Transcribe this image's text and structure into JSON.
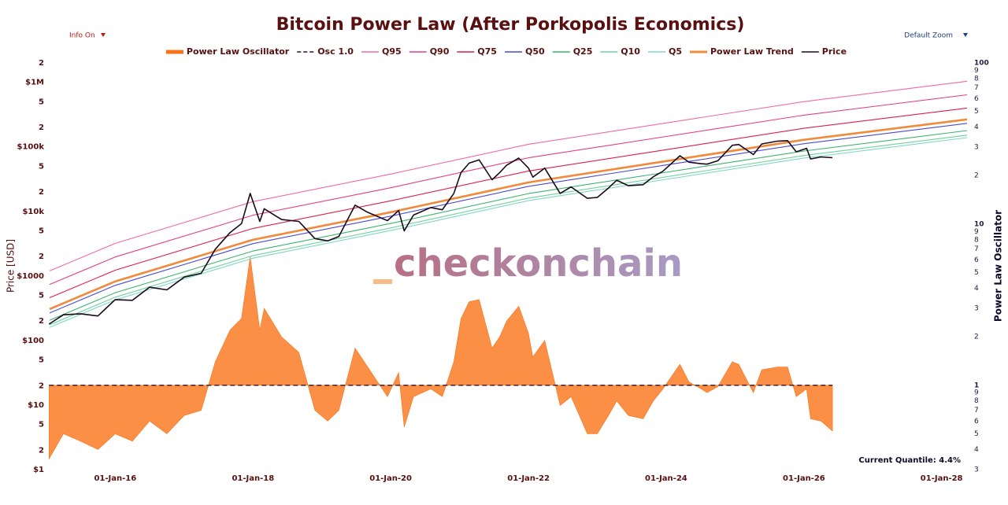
{
  "chart_data": {
    "type": "line",
    "title": "Bitcoin Power Law (After Porkopolis Economics)",
    "controls": [
      "Info On",
      "Default Zoom"
    ],
    "annotation": "Current Quantile: 4.4%",
    "watermark": "checkonchain",
    "ylabel": "Price [USD]",
    "y2label": "Power Law Oscillator",
    "log_y": true,
    "log_y2": true,
    "grid": false,
    "legend": "top",
    "xlim": [
      "2015-01-18",
      "2028-05-15"
    ],
    "xticks": [
      {
        "value": "2016-01-01",
        "label": "01-Jan-16"
      },
      {
        "value": "2018-01-01",
        "label": "01-Jan-18"
      },
      {
        "value": "2020-01-01",
        "label": "01-Jan-20"
      },
      {
        "value": "2022-01-01",
        "label": "01-Jan-22"
      },
      {
        "value": "2024-01-01",
        "label": "01-Jan-24"
      },
      {
        "value": "2026-01-01",
        "label": "01-Jan-26"
      },
      {
        "value": "2028-01-01",
        "label": "01-Jan-28"
      }
    ],
    "ylim": [
      1,
      2000000
    ],
    "yticks": [
      {
        "value": 1,
        "label": "$1"
      },
      2,
      5,
      {
        "value": 10,
        "label": "$10"
      },
      {
        "value": 20,
        "label": "2"
      },
      {
        "value": 50,
        "label": "5"
      },
      {
        "value": 100,
        "label": "$100"
      },
      {
        "value": 200,
        "label": "2"
      },
      {
        "value": 500,
        "label": "5"
      },
      {
        "value": 1000,
        "label": "$1000"
      },
      {
        "value": 2000,
        "label": "2"
      },
      {
        "value": 5000,
        "label": "5"
      },
      {
        "value": 10000,
        "label": "$10k"
      },
      {
        "value": 20000,
        "label": "2"
      },
      {
        "value": 50000,
        "label": "5"
      },
      {
        "value": 100000,
        "label": "$100k"
      },
      {
        "value": 200000,
        "label": "2"
      },
      {
        "value": 500000,
        "label": "5"
      },
      {
        "value": 1000000,
        "label": "$1M"
      },
      {
        "value": 2000000,
        "label": "2"
      }
    ],
    "y2lim": [
      0.3,
      100
    ],
    "y2ticks": [
      {
        "value": 0.3,
        "label": "3"
      },
      {
        "value": 0.4,
        "label": "4"
      },
      {
        "value": 0.5,
        "label": "5"
      },
      {
        "value": 0.6,
        "label": "6"
      },
      {
        "value": 0.7,
        "label": "7"
      },
      {
        "value": 0.8,
        "label": "8"
      },
      {
        "value": 0.9,
        "label": "9"
      },
      1,
      2,
      3,
      4,
      5,
      6,
      7,
      8,
      9,
      10,
      {
        "value": 20,
        "label": "2"
      },
      {
        "value": 30,
        "label": "3"
      },
      {
        "value": 40,
        "label": "4"
      },
      {
        "value": 50,
        "label": "5"
      },
      {
        "value": 60,
        "label": "6"
      },
      {
        "value": 70,
        "label": "7"
      },
      {
        "value": 80,
        "label": "8"
      },
      {
        "value": 90,
        "label": "9"
      },
      100
    ],
    "series": [
      {
        "name": "Power Law Oscillator",
        "color": "#f97316",
        "axis": "y2",
        "kind": "area",
        "x": [
          "2015-01-15",
          "2015-04-01",
          "2015-07-01",
          "2015-10-01",
          "2016-01-01",
          "2016-04-01",
          "2016-07-01",
          "2016-10-01",
          "2017-01-01",
          "2017-04-01",
          "2017-06-15",
          "2017-09-01",
          "2017-11-01",
          "2017-12-17",
          "2018-02-06",
          "2018-03-01",
          "2018-06-01",
          "2018-09-01",
          "2018-11-25",
          "2019-02-01",
          "2019-04-01",
          "2019-06-26",
          "2019-09-01",
          "2019-12-15",
          "2020-02-12",
          "2020-03-13",
          "2020-05-01",
          "2020-08-01",
          "2020-10-01",
          "2020-12-01",
          "2021-01-08",
          "2021-02-20",
          "2021-04-14",
          "2021-06-22",
          "2021-08-01",
          "2021-09-07",
          "2021-11-10",
          "2022-01-01",
          "2022-01-24",
          "2022-03-28",
          "2022-06-18",
          "2022-08-15",
          "2022-11-09",
          "2023-01-01",
          "2023-03-01",
          "2023-04-14",
          "2023-06-15",
          "2023-09-01",
          "2023-10-25",
          "2023-12-15",
          "2024-03-14",
          "2024-05-01",
          "2024-07-05",
          "2024-08-05",
          "2024-10-01",
          "2024-12-17",
          "2025-01-20",
          "2025-04-08",
          "2025-05-22",
          "2025-08-14",
          "2025-10-06",
          "2025-11-21",
          "2026-01-15",
          "2026-02-05",
          "2026-04-01",
          "2026-06-01"
        ],
        "values": [
          0.35,
          0.5,
          0.45,
          0.4,
          0.5,
          0.45,
          0.6,
          0.5,
          0.65,
          0.7,
          1.4,
          2.2,
          2.6,
          6.3,
          2.2,
          3.0,
          2.0,
          1.6,
          0.7,
          0.6,
          0.7,
          1.7,
          1.3,
          0.85,
          1.2,
          0.55,
          0.85,
          0.95,
          0.85,
          1.4,
          2.6,
          3.3,
          3.4,
          1.7,
          2.0,
          2.5,
          3.1,
          2.1,
          1.5,
          1.9,
          0.75,
          0.85,
          0.5,
          0.5,
          0.65,
          0.8,
          0.65,
          0.62,
          0.8,
          0.95,
          1.35,
          1.05,
          0.95,
          0.9,
          0.98,
          1.4,
          1.35,
          0.9,
          1.25,
          1.3,
          1.3,
          0.85,
          0.95,
          0.62,
          0.6,
          0.52
        ]
      },
      {
        "name": "Osc 1.0",
        "color": "#2a1030",
        "axis": "y2",
        "dash": true,
        "x": [
          "2015-01-15",
          "2026-06-01"
        ],
        "values": [
          1,
          1
        ]
      },
      {
        "name": "Q95",
        "color": "#f06aa8",
        "x": [
          "2015-01-18",
          "2016-01-01",
          "2018-01-01",
          "2020-01-01",
          "2022-01-01",
          "2024-01-01",
          "2026-01-01",
          "2028-05-15"
        ],
        "values": [
          1200,
          3200,
          14200,
          37900,
          110000,
          235000,
          503000,
          1040000
        ]
      },
      {
        "name": "Q90",
        "color": "#e23f86",
        "x": [
          "2015-01-18",
          "2016-01-01",
          "2018-01-01",
          "2020-01-01",
          "2022-01-01",
          "2024-01-01",
          "2026-01-01",
          "2028-05-15"
        ],
        "values": [
          740,
          1970,
          8740,
          23300,
          67700,
          145000,
          310000,
          641000
        ]
      },
      {
        "name": "Q75",
        "color": "#dc1f4a",
        "x": [
          "2015-01-18",
          "2016-01-01",
          "2018-01-01",
          "2020-01-01",
          "2022-01-01",
          "2024-01-01",
          "2026-01-01",
          "2028-05-15"
        ],
        "values": [
          460,
          1230,
          5460,
          14600,
          42300,
          90500,
          194000,
          400000
        ]
      },
      {
        "name": "Q50",
        "color": "#4a4ad0",
        "x": [
          "2015-01-18",
          "2016-01-01",
          "2018-01-01",
          "2020-01-01",
          "2022-01-01",
          "2024-01-01",
          "2026-01-01",
          "2028-05-15"
        ],
        "values": [
          267,
          715,
          3170,
          8460,
          24500,
          52500,
          112000,
          232000
        ]
      },
      {
        "name": "Q25",
        "color": "#3cb371",
        "x": [
          "2015-01-18",
          "2016-01-01",
          "2018-01-01",
          "2020-01-01",
          "2022-01-01",
          "2024-01-01",
          "2026-01-01",
          "2028-05-15"
        ],
        "values": [
          206,
          551,
          2440,
          6510,
          18900,
          40400,
          86400,
          179000
        ]
      },
      {
        "name": "Q10",
        "color": "#6fd39a",
        "x": [
          "2015-01-18",
          "2016-01-01",
          "2018-01-01",
          "2020-01-01",
          "2022-01-01",
          "2024-01-01",
          "2026-01-01",
          "2028-05-15"
        ],
        "values": [
          175,
          469,
          2070,
          5540,
          16100,
          34400,
          73500,
          152000
        ]
      },
      {
        "name": "Q5",
        "color": "#7fd8c8",
        "x": [
          "2015-01-18",
          "2016-01-01",
          "2018-01-01",
          "2020-01-01",
          "2022-01-01",
          "2024-01-01",
          "2026-01-01",
          "2028-05-15"
        ],
        "values": [
          160,
          427,
          1890,
          5050,
          14700,
          31400,
          67100,
          139000
        ]
      },
      {
        "name": "Power Law Trend",
        "color": "#f08a3c",
        "x": [
          "2015-01-18",
          "2016-01-01",
          "2018-01-01",
          "2020-01-01",
          "2022-01-01",
          "2024-01-01",
          "2026-01-01",
          "2028-05-15"
        ],
        "values": [
          307,
          822,
          3640,
          9720,
          28200,
          60300,
          129000,
          267000
        ]
      },
      {
        "name": "Price",
        "color": "#1a0a1a",
        "x": [
          "2015-01-15",
          "2015-04-01",
          "2015-07-01",
          "2015-10-01",
          "2016-01-01",
          "2016-04-01",
          "2016-07-01",
          "2016-10-01",
          "2017-01-01",
          "2017-04-01",
          "2017-06-15",
          "2017-09-01",
          "2017-11-01",
          "2017-12-17",
          "2018-02-06",
          "2018-03-01",
          "2018-06-01",
          "2018-09-01",
          "2018-11-25",
          "2019-02-01",
          "2019-04-01",
          "2019-06-26",
          "2019-09-01",
          "2019-12-15",
          "2020-02-12",
          "2020-03-13",
          "2020-05-01",
          "2020-08-01",
          "2020-10-01",
          "2020-12-01",
          "2021-01-08",
          "2021-02-20",
          "2021-04-14",
          "2021-06-22",
          "2021-08-01",
          "2021-09-07",
          "2021-11-10",
          "2022-01-01",
          "2022-01-24",
          "2022-03-28",
          "2022-06-18",
          "2022-08-15",
          "2022-11-09",
          "2023-01-01",
          "2023-03-01",
          "2023-04-14",
          "2023-06-15",
          "2023-09-01",
          "2023-10-25",
          "2023-12-15",
          "2024-03-14",
          "2024-05-01",
          "2024-07-05",
          "2024-08-05",
          "2024-10-01",
          "2024-12-17",
          "2025-01-20",
          "2025-04-08",
          "2025-05-22",
          "2025-08-14",
          "2025-10-06",
          "2025-11-21",
          "2026-01-15",
          "2026-02-05",
          "2026-04-01",
          "2026-06-01"
        ],
        "values": [
          180,
          250,
          260,
          240,
          430,
          420,
          670,
          610,
          960,
          1100,
          2600,
          4700,
          6500,
          19000,
          7000,
          11000,
          7500,
          7000,
          3800,
          3500,
          4100,
          12500,
          9700,
          7200,
          10300,
          5000,
          8800,
          11500,
          10600,
          19000,
          40000,
          56000,
          63000,
          31000,
          40000,
          52000,
          67000,
          47000,
          34000,
          47000,
          19000,
          24000,
          16000,
          16500,
          23000,
          30500,
          25000,
          26000,
          34500,
          42000,
          73000,
          58000,
          55000,
          54000,
          61000,
          106000,
          109000,
          76000,
          111000,
          123000,
          125000,
          84000,
          95000,
          65000,
          70000,
          68000
        ]
      }
    ]
  }
}
